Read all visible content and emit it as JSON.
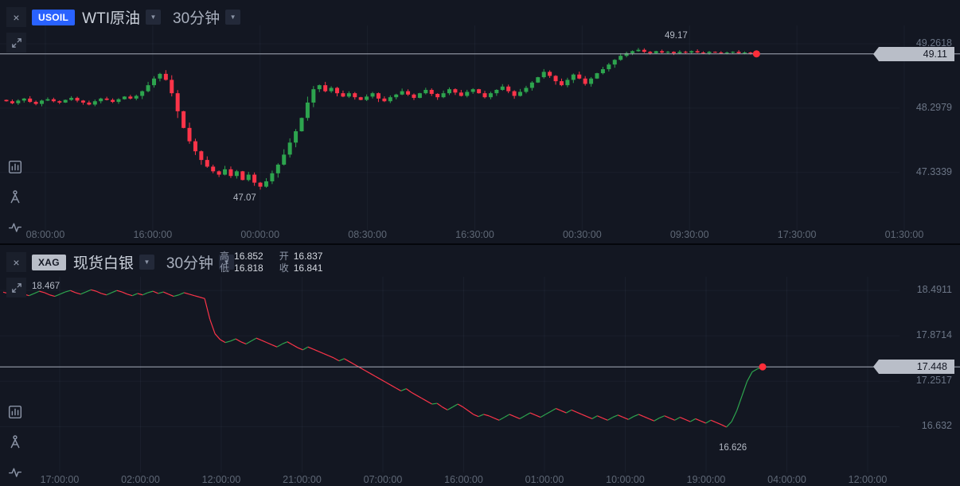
{
  "window": {
    "close_icon": "×",
    "chevron_down_icon": "▼"
  },
  "colors": {
    "background": "#131722",
    "up": "#2DA44E",
    "down": "#FB3449",
    "accent_blue": "#2962FF",
    "badge_bg": "#B9BEC8",
    "price_line": "#A7ADB9",
    "dot_red": "#FF2D39"
  },
  "panels": {
    "usoil": {
      "symbol_badge": "USOIL",
      "title": "WTI原油",
      "timeframe": "30分钟",
      "high_annotation": "49.17",
      "low_annotation": "47.07",
      "current_price": "49.11",
      "price_axis_labels": [
        "49.2618",
        "48.2979",
        "47.3339"
      ],
      "time_axis_labels": [
        "08:00:00",
        "16:00:00",
        "00:00:00",
        "08:30:00",
        "16:30:00",
        "00:30:00",
        "09:30:00",
        "17:30:00",
        "01:30:00"
      ]
    },
    "xag": {
      "symbol_badge": "XAG",
      "title": "现货白银",
      "timeframe": "30分钟",
      "ohlc": {
        "high_label": "高",
        "high_value": "16.852",
        "open_label": "开",
        "open_value": "16.837",
        "low_label": "低",
        "low_value": "16.818",
        "close_label": "收",
        "close_value": "16.841"
      },
      "start_annotation": "18.467",
      "low_annotation": "16.626",
      "current_price": "17.448",
      "price_axis_labels": [
        "18.4911",
        "17.8714",
        "17.2517",
        "16.632"
      ],
      "time_axis_labels": [
        "17:00:00",
        "02:00:00",
        "12:00:00",
        "21:00:00",
        "07:00:00",
        "16:00:00",
        "01:00:00",
        "10:00:00",
        "19:00:00",
        "04:00:00",
        "12:00:00"
      ]
    }
  },
  "chart_data": [
    {
      "type": "candlestick",
      "symbol": "USOIL",
      "name": "WTI原油",
      "interval": "30分钟",
      "price_min": 46.52,
      "price_max": 49.44,
      "current_price": 49.11,
      "high_annotation": 49.17,
      "low_annotation": 47.07,
      "y_ticks": [
        49.2618,
        48.2979,
        47.3339
      ],
      "x_ticks": [
        "08:00:00",
        "16:00:00",
        "00:00:00",
        "08:30:00",
        "16:30:00",
        "00:30:00",
        "09:30:00",
        "17:30:00",
        "01:30:00"
      ],
      "closes": [
        48.4,
        48.37,
        48.41,
        48.44,
        48.39,
        48.36,
        48.41,
        48.43,
        48.4,
        48.38,
        48.42,
        48.45,
        48.41,
        48.38,
        48.35,
        48.4,
        48.44,
        48.42,
        48.39,
        48.43,
        48.47,
        48.44,
        48.48,
        48.55,
        48.64,
        48.74,
        48.81,
        48.72,
        48.52,
        48.25,
        48.0,
        47.8,
        47.65,
        47.52,
        47.42,
        47.35,
        47.3,
        47.38,
        47.28,
        47.35,
        47.22,
        47.3,
        47.18,
        47.12,
        47.2,
        47.32,
        47.45,
        47.6,
        47.78,
        47.95,
        48.15,
        48.38,
        48.58,
        48.64,
        48.55,
        48.6,
        48.52,
        48.47,
        48.52,
        48.46,
        48.42,
        48.47,
        48.52,
        48.44,
        48.4,
        48.46,
        48.5,
        48.55,
        48.5,
        48.45,
        48.52,
        48.57,
        48.51,
        48.46,
        48.52,
        48.58,
        48.53,
        48.48,
        48.54,
        48.58,
        48.52,
        48.46,
        48.52,
        48.57,
        48.62,
        48.55,
        48.48,
        48.54,
        48.6,
        48.68,
        48.76,
        48.84,
        48.78,
        48.7,
        48.64,
        48.72,
        48.8,
        48.74,
        48.66,
        48.74,
        48.82,
        48.88,
        48.95,
        49.02,
        49.08,
        49.12,
        49.15,
        49.17,
        49.14,
        49.12,
        49.15,
        49.13,
        49.14,
        49.12,
        49.14,
        49.13,
        49.15,
        49.13,
        49.12,
        49.14,
        49.13,
        49.12,
        49.13,
        49.14,
        49.12,
        49.13,
        49.12,
        49.11
      ]
    },
    {
      "type": "line",
      "symbol": "XAG",
      "name": "现货白银",
      "interval": "30分钟",
      "price_min": 16.05,
      "price_max": 18.59,
      "current_price": 17.448,
      "start_value": 18.467,
      "low_annotation": 16.626,
      "ohlc": {
        "high": 16.852,
        "open": 16.837,
        "low": 16.818,
        "close": 16.841
      },
      "y_ticks": [
        18.4911,
        17.8714,
        17.2517,
        16.632
      ],
      "x_ticks": [
        "17:00:00",
        "02:00:00",
        "12:00:00",
        "21:00:00",
        "07:00:00",
        "16:00:00",
        "01:00:00",
        "10:00:00",
        "19:00:00",
        "04:00:00",
        "12:00:00"
      ],
      "values": [
        18.467,
        18.45,
        18.43,
        18.46,
        18.44,
        18.42,
        18.45,
        18.48,
        18.46,
        18.43,
        18.41,
        18.44,
        18.47,
        18.49,
        18.46,
        18.44,
        18.47,
        18.5,
        18.48,
        18.45,
        18.43,
        18.46,
        18.49,
        18.47,
        18.44,
        18.42,
        18.45,
        18.43,
        18.46,
        18.48,
        18.45,
        18.47,
        18.44,
        18.41,
        18.43,
        18.46,
        18.44,
        18.42,
        18.4,
        18.38,
        18.1,
        17.9,
        17.82,
        17.78,
        17.8,
        17.83,
        17.79,
        17.76,
        17.8,
        17.84,
        17.81,
        17.78,
        17.75,
        17.72,
        17.76,
        17.79,
        17.75,
        17.71,
        17.68,
        17.72,
        17.69,
        17.66,
        17.63,
        17.6,
        17.57,
        17.53,
        17.56,
        17.52,
        17.48,
        17.44,
        17.4,
        17.36,
        17.32,
        17.28,
        17.24,
        17.2,
        17.16,
        17.12,
        17.15,
        17.1,
        17.06,
        17.02,
        16.98,
        16.94,
        16.95,
        16.9,
        16.86,
        16.9,
        16.94,
        16.9,
        16.85,
        16.8,
        16.77,
        16.8,
        16.78,
        16.75,
        16.72,
        16.76,
        16.8,
        16.77,
        16.74,
        16.78,
        16.82,
        16.79,
        16.76,
        16.8,
        16.84,
        16.88,
        16.85,
        16.82,
        16.86,
        16.83,
        16.8,
        16.77,
        16.74,
        16.78,
        16.75,
        16.72,
        16.76,
        16.79,
        16.76,
        16.73,
        16.77,
        16.8,
        16.77,
        16.74,
        16.71,
        16.75,
        16.78,
        16.75,
        16.72,
        16.76,
        16.73,
        16.7,
        16.74,
        16.71,
        16.68,
        16.72,
        16.69,
        16.66,
        16.626,
        16.7,
        16.85,
        17.05,
        17.25,
        17.38,
        17.42,
        17.448
      ]
    }
  ]
}
